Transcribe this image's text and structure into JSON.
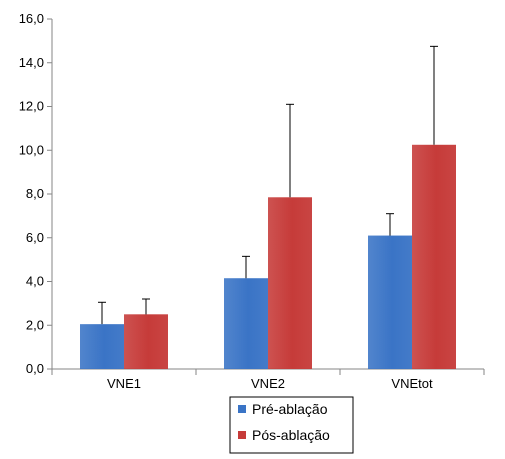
{
  "chart_data": {
    "type": "bar",
    "categories": [
      "VNE1",
      "VNE2",
      "VNEtot"
    ],
    "series": [
      {
        "name": "Pré-ablação",
        "color": "#3a74c6",
        "values": [
          2.05,
          4.15,
          6.1
        ],
        "error_upper": [
          3.05,
          5.15,
          7.1
        ]
      },
      {
        "name": "Pós-ablação",
        "color": "#c63b39",
        "values": [
          2.5,
          7.85,
          10.25
        ],
        "error_upper": [
          3.2,
          12.1,
          14.75
        ]
      }
    ],
    "yticks": [
      "0,0",
      "2,0",
      "4,0",
      "6,0",
      "8,0",
      "10,0",
      "12,0",
      "14,0",
      "16,0"
    ],
    "ylim": [
      0,
      16
    ],
    "grid": false,
    "legend_position": "bottom"
  }
}
